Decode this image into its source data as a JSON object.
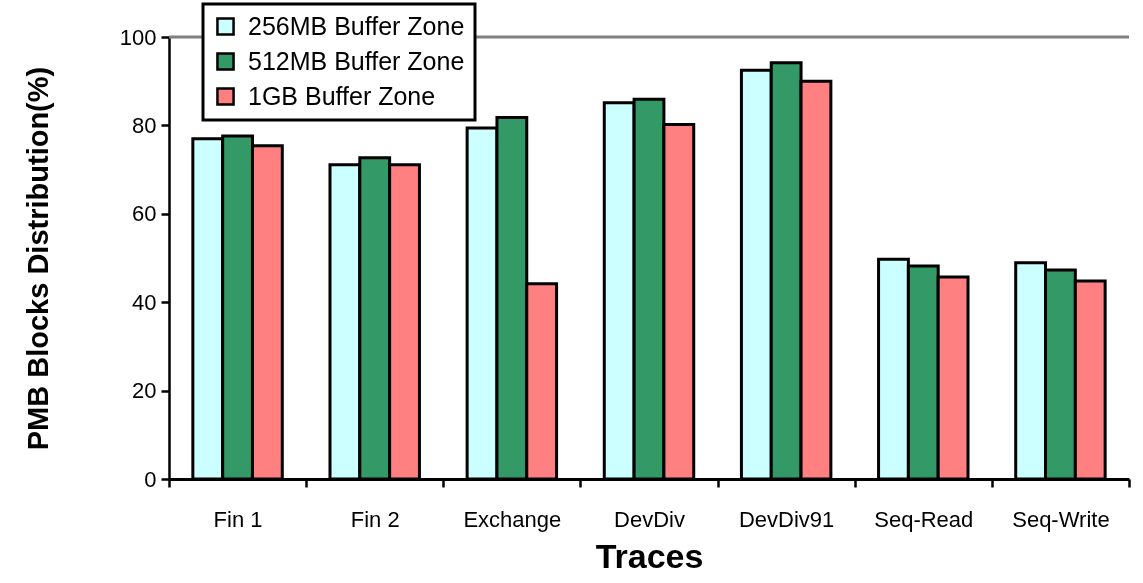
{
  "chart_data": {
    "type": "bar",
    "xlabel": "Traces",
    "ylabel": "PMB Blocks Distribution(%)",
    "categories": [
      "Fin 1",
      "Fin 2",
      "Exchange",
      "DevDiv",
      "DevDiv91",
      "Seq-Read",
      "Seq-Write"
    ],
    "series": [
      {
        "name": "256MB Buffer Zone",
        "color": "#ccffff",
        "values": [
          77.0,
          71.1,
          79.4,
          85.1,
          92.5,
          49.7,
          48.9
        ]
      },
      {
        "name": "512MB Buffer Zone",
        "color": "#339966",
        "values": [
          77.6,
          72.7,
          81.8,
          85.9,
          94.2,
          48.2,
          47.3
        ]
      },
      {
        "name": "1GB Buffer Zone",
        "color": "#ff8080",
        "values": [
          75.4,
          71.1,
          44.2,
          80.2,
          90.0,
          45.7,
          44.8
        ]
      }
    ],
    "ylim": [
      0,
      100
    ],
    "yticks": [
      0,
      20,
      40,
      60,
      80,
      100
    ],
    "grid": false,
    "legend": "top left",
    "ref_lines": [
      {
        "axis": "y",
        "value": 100,
        "color": "#808080"
      }
    ]
  }
}
